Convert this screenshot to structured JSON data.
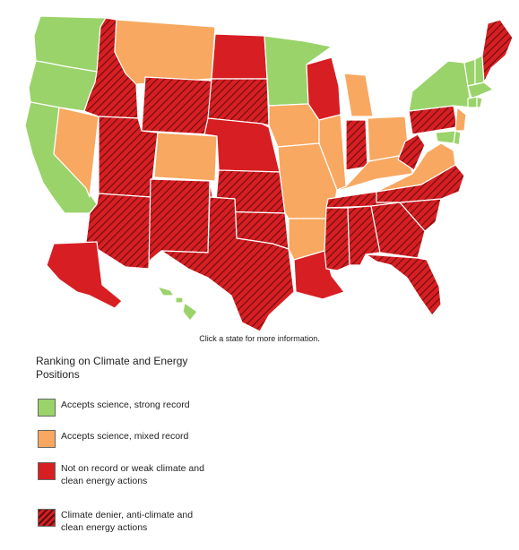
{
  "colors": {
    "green": "#9ad36a",
    "orange": "#f8a860",
    "red": "#d71e22",
    "hatch_line": "#5a0f10"
  },
  "caption": "Click a state for more information.",
  "legend": {
    "title": "Ranking on Climate and Energy Positions",
    "items": [
      {
        "key": "green",
        "label": "Accepts science, strong record",
        "pattern": "solid-green"
      },
      {
        "key": "orange",
        "label": "Accepts science, mixed record",
        "pattern": "solid-orange"
      },
      {
        "key": "red",
        "label": "Not on record or weak climate and clean energy actions",
        "pattern": "solid-red"
      },
      {
        "key": "hatched",
        "label": "Climate denier, anti-climate and clean energy actions",
        "pattern": "hatched-red"
      }
    ]
  },
  "states": [
    {
      "code": "WA",
      "category": "green"
    },
    {
      "code": "OR",
      "category": "green"
    },
    {
      "code": "CA",
      "category": "green"
    },
    {
      "code": "NV",
      "category": "orange"
    },
    {
      "code": "ID",
      "category": "hatched"
    },
    {
      "code": "MT",
      "category": "orange"
    },
    {
      "code": "WY",
      "category": "hatched"
    },
    {
      "code": "UT",
      "category": "hatched"
    },
    {
      "code": "AZ",
      "category": "hatched"
    },
    {
      "code": "CO",
      "category": "orange"
    },
    {
      "code": "NM",
      "category": "hatched"
    },
    {
      "code": "ND",
      "category": "red"
    },
    {
      "code": "SD",
      "category": "hatched"
    },
    {
      "code": "NE",
      "category": "red"
    },
    {
      "code": "KS",
      "category": "hatched"
    },
    {
      "code": "OK",
      "category": "hatched"
    },
    {
      "code": "TX",
      "category": "hatched"
    },
    {
      "code": "MN",
      "category": "green"
    },
    {
      "code": "IA",
      "category": "orange"
    },
    {
      "code": "MO",
      "category": "orange"
    },
    {
      "code": "AR",
      "category": "orange"
    },
    {
      "code": "LA",
      "category": "red"
    },
    {
      "code": "WI",
      "category": "red"
    },
    {
      "code": "IL",
      "category": "orange"
    },
    {
      "code": "MI",
      "category": "orange"
    },
    {
      "code": "IN",
      "category": "hatched"
    },
    {
      "code": "OH",
      "category": "orange"
    },
    {
      "code": "KY",
      "category": "orange"
    },
    {
      "code": "TN",
      "category": "hatched"
    },
    {
      "code": "MS",
      "category": "hatched"
    },
    {
      "code": "AL",
      "category": "hatched"
    },
    {
      "code": "GA",
      "category": "hatched"
    },
    {
      "code": "FL",
      "category": "hatched"
    },
    {
      "code": "SC",
      "category": "hatched"
    },
    {
      "code": "NC",
      "category": "hatched"
    },
    {
      "code": "VA",
      "category": "orange"
    },
    {
      "code": "WV",
      "category": "hatched"
    },
    {
      "code": "PA",
      "category": "hatched"
    },
    {
      "code": "NY",
      "category": "green"
    },
    {
      "code": "NJ",
      "category": "orange"
    },
    {
      "code": "DE",
      "category": "green"
    },
    {
      "code": "MD",
      "category": "green"
    },
    {
      "code": "VT",
      "category": "green"
    },
    {
      "code": "NH",
      "category": "green"
    },
    {
      "code": "MA",
      "category": "green"
    },
    {
      "code": "CT",
      "category": "green"
    },
    {
      "code": "RI",
      "category": "green"
    },
    {
      "code": "ME",
      "category": "hatched"
    },
    {
      "code": "AK",
      "category": "red"
    },
    {
      "code": "HI",
      "category": "green"
    }
  ]
}
